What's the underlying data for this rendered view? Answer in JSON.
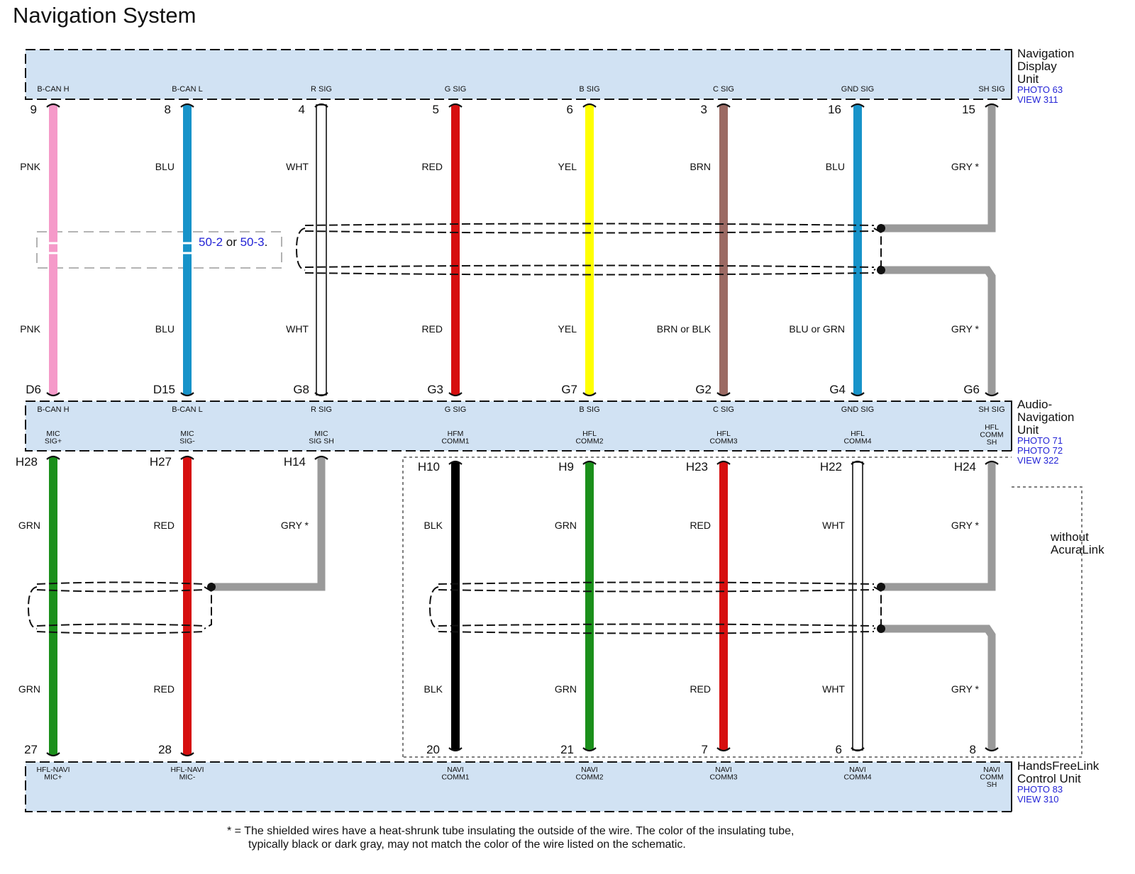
{
  "title": "Navigation System",
  "components": {
    "top": {
      "name_lines": [
        "Navigation",
        "Display",
        "Unit"
      ],
      "refs": [
        "PHOTO 63",
        "VIEW 311"
      ],
      "signals": [
        "B-CAN H",
        "B-CAN L",
        "R SIG",
        "G SIG",
        "B SIG",
        "C SIG",
        "GND SIG",
        "SH SIG"
      ],
      "pins": [
        "9",
        "8",
        "4",
        "5",
        "6",
        "3",
        "16",
        "15"
      ]
    },
    "mid": {
      "name_lines": [
        "Audio-",
        "Navigation",
        "Unit"
      ],
      "refs": [
        "PHOTO 71",
        "PHOTO 72",
        "VIEW 322"
      ],
      "signals_top": [
        "B-CAN H",
        "B-CAN L",
        "R SIG",
        "G SIG",
        "B SIG",
        "C SIG",
        "GND SIG",
        "SH SIG"
      ],
      "pins_top": [
        "D6",
        "D15",
        "G8",
        "G3",
        "G7",
        "G2",
        "G4",
        "G6"
      ],
      "signals_bottom": [
        [
          "MIC",
          "SIG+"
        ],
        [
          "MIC",
          "SIG-"
        ],
        [
          "MIC",
          "SIG SH"
        ],
        [
          "HFM",
          "COMM1"
        ],
        [
          "HFL",
          "COMM2"
        ],
        [
          "HFL",
          "COMM3"
        ],
        [
          "HFL",
          "COMM4"
        ],
        [
          "HFL",
          "COMM",
          "SH"
        ]
      ],
      "pins_bottom": [
        "H28",
        "H27",
        "H14",
        "H10",
        "H9",
        "H23",
        "H22",
        "H24"
      ]
    },
    "bottom": {
      "name_lines": [
        "HandsFreeLink",
        "Control Unit"
      ],
      "refs": [
        "PHOTO 83",
        "VIEW 310"
      ],
      "signals": [
        [
          "HFL-NAVI",
          "MIC+"
        ],
        [
          "HFL-NAVI",
          "MIC-"
        ],
        [
          "NAVI",
          "COMM1"
        ],
        [
          "NAVI",
          "COMM2"
        ],
        [
          "NAVI",
          "COMM3"
        ],
        [
          "NAVI",
          "COMM4"
        ],
        [
          "NAVI",
          "COMM",
          "SH"
        ]
      ],
      "pins": [
        "27",
        "28",
        "20",
        "21",
        "7",
        "6",
        "8"
      ]
    }
  },
  "upper_wires": {
    "labels_top": [
      "PNK",
      "BLU",
      "WHT",
      "RED",
      "YEL",
      "BRN",
      "BLU",
      "GRY *"
    ],
    "labels_bottom": [
      "PNK",
      "BLU",
      "WHT",
      "RED",
      "YEL",
      "BRN or BLK",
      "BLU or GRN",
      "GRY *"
    ],
    "colors": [
      "#f59ac9",
      "#1793c9",
      "#ffffff",
      "#d60f0f",
      "#ffff00",
      "#9b6a63",
      "#1793c9",
      "#9a9a9a"
    ]
  },
  "lower_wires": {
    "labels_top": [
      "GRN",
      "RED",
      "GRY *",
      "BLK",
      "GRN",
      "RED",
      "WHT",
      "GRY *"
    ],
    "labels_bottom": [
      "GRN",
      "RED",
      "BLK",
      "GRN",
      "RED",
      "WHT",
      "GRY *"
    ],
    "colors": [
      "#1a8f1a",
      "#d60f0f",
      "#9a9a9a",
      "#000000",
      "#1a8f1a",
      "#d60f0f",
      "#ffffff",
      "#9a9a9a"
    ]
  },
  "ref_note": {
    "a": "50-2",
    "or": "or",
    "b": "50-3",
    "end": "."
  },
  "option_label": [
    "without",
    "AcuraLink"
  ],
  "footnote": {
    "line1": "* =  The shielded wires have a heat-shrunk tube insulating the outside of the wire. The color of the insulating tube,",
    "line2": "typically black or dark gray, may not match the color of the wire listed on the schematic."
  },
  "theme": {
    "box_fill": "#d1e2f3",
    "ref_link": "#2323d6"
  }
}
